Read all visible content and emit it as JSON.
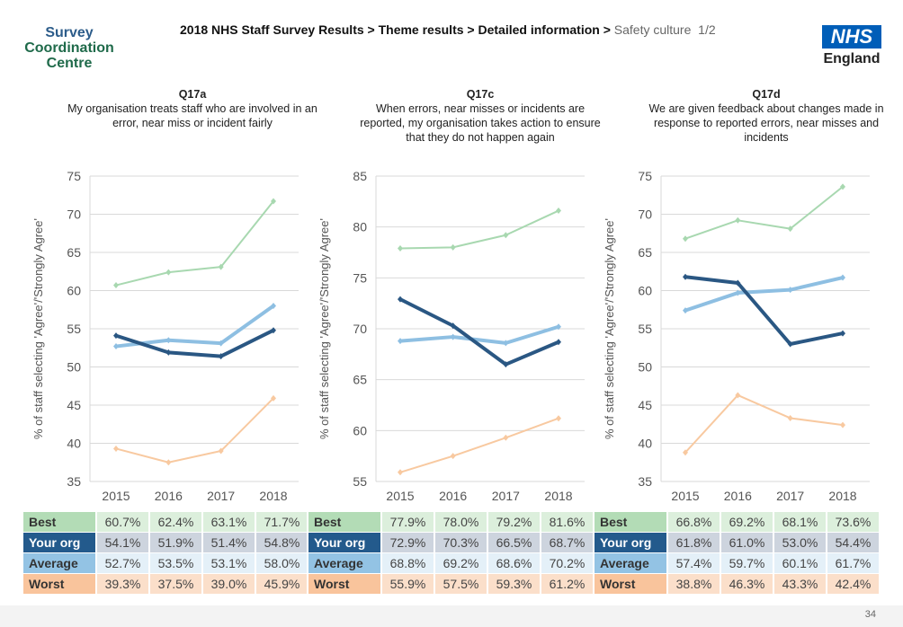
{
  "header": {
    "logo_lines": [
      "Survey",
      "Coordination",
      "Centre"
    ],
    "breadcrumb": "2018 NHS Staff Survey Results > Theme results > Detailed information > ",
    "current": "Safety culture",
    "page_of": "1/2",
    "nhs_logo": "NHS",
    "nhs_sub": "England"
  },
  "colors": {
    "best": "#a8d8b0",
    "your_org": "#2a5783",
    "average": "#8ebfe2",
    "worst": "#f8c9a0"
  },
  "chart_data": [
    {
      "type": "line",
      "id": "Q17a",
      "title": "Q17a",
      "subtitle": "My organisation treats staff who are involved in an error, near miss or incident fairly",
      "ylabel": "% of staff selecting 'Agree'/'Strongly Agree'",
      "ylim": [
        35,
        75
      ],
      "yticks": [
        35,
        40,
        45,
        50,
        55,
        60,
        65,
        70,
        75
      ],
      "grid": true,
      "categories": [
        "2015",
        "2016",
        "2017",
        "2018"
      ],
      "series": [
        {
          "name": "Best",
          "values": [
            60.7,
            62.4,
            63.1,
            71.7
          ]
        },
        {
          "name": "Your org",
          "values": [
            54.1,
            51.9,
            51.4,
            54.8
          ]
        },
        {
          "name": "Average",
          "values": [
            52.7,
            53.5,
            53.1,
            58.0
          ]
        },
        {
          "name": "Worst",
          "values": [
            39.3,
            37.5,
            39.0,
            45.9
          ]
        }
      ],
      "table": [
        [
          "60.7%",
          "62.4%",
          "63.1%",
          "71.7%"
        ],
        [
          "54.1%",
          "51.9%",
          "51.4%",
          "54.8%"
        ],
        [
          "52.7%",
          "53.5%",
          "53.1%",
          "58.0%"
        ],
        [
          "39.3%",
          "37.5%",
          "39.0%",
          "45.9%"
        ]
      ]
    },
    {
      "type": "line",
      "id": "Q17c",
      "title": "Q17c",
      "subtitle": "When errors, near misses or incidents are reported, my organisation takes action to ensure that they do not happen again",
      "ylabel": "% of staff selecting 'Agree'/'Strongly Agree'",
      "ylim": [
        55,
        85
      ],
      "yticks": [
        55,
        60,
        65,
        70,
        75,
        80,
        85
      ],
      "grid": true,
      "categories": [
        "2015",
        "2016",
        "2017",
        "2018"
      ],
      "series": [
        {
          "name": "Best",
          "values": [
            77.9,
            78.0,
            79.2,
            81.6
          ]
        },
        {
          "name": "Your org",
          "values": [
            72.9,
            70.3,
            66.5,
            68.7
          ]
        },
        {
          "name": "Average",
          "values": [
            68.8,
            69.2,
            68.6,
            70.2
          ]
        },
        {
          "name": "Worst",
          "values": [
            55.9,
            57.5,
            59.3,
            61.2
          ]
        }
      ],
      "table": [
        [
          "77.9%",
          "78.0%",
          "79.2%",
          "81.6%"
        ],
        [
          "72.9%",
          "70.3%",
          "66.5%",
          "68.7%"
        ],
        [
          "68.8%",
          "69.2%",
          "68.6%",
          "70.2%"
        ],
        [
          "55.9%",
          "57.5%",
          "59.3%",
          "61.2%"
        ]
      ]
    },
    {
      "type": "line",
      "id": "Q17d",
      "title": "Q17d",
      "subtitle": "We are given feedback about changes made in response to reported errors, near misses and incidents",
      "ylabel": "% of staff selecting 'Agree'/'Strongly Agree'",
      "ylim": [
        35,
        75
      ],
      "yticks": [
        35,
        40,
        45,
        50,
        55,
        60,
        65,
        70,
        75
      ],
      "grid": true,
      "categories": [
        "2015",
        "2016",
        "2017",
        "2018"
      ],
      "series": [
        {
          "name": "Best",
          "values": [
            66.8,
            69.2,
            68.1,
            73.6
          ]
        },
        {
          "name": "Your org",
          "values": [
            61.8,
            61.0,
            53.0,
            54.4
          ]
        },
        {
          "name": "Average",
          "values": [
            57.4,
            59.7,
            60.1,
            61.7
          ]
        },
        {
          "name": "Worst",
          "values": [
            38.8,
            46.3,
            43.3,
            42.4
          ]
        }
      ],
      "table": [
        [
          "66.8%",
          "69.2%",
          "68.1%",
          "73.6%"
        ],
        [
          "61.8%",
          "61.0%",
          "53.0%",
          "54.4%"
        ],
        [
          "57.4%",
          "59.7%",
          "60.1%",
          "61.7%"
        ],
        [
          "38.8%",
          "46.3%",
          "43.3%",
          "42.4%"
        ]
      ]
    }
  ],
  "row_labels": [
    "Best",
    "Your org",
    "Average",
    "Worst"
  ],
  "page_number": "34"
}
